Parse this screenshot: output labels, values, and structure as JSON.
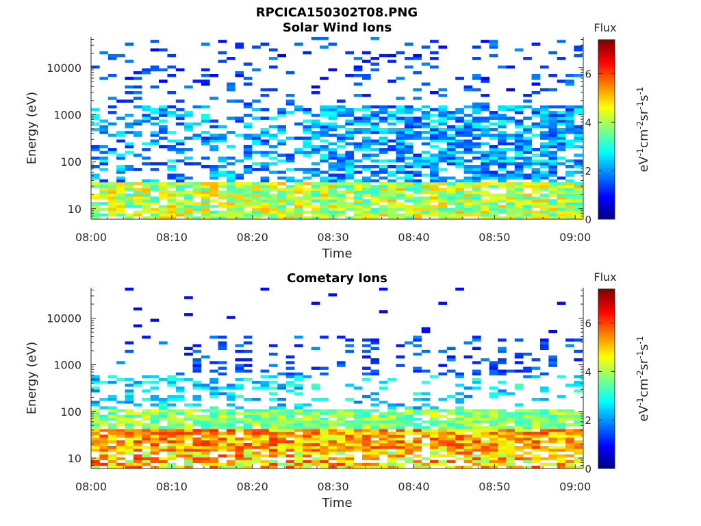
{
  "figure": {
    "filename_title": "RPCICA150302T08.PNG"
  },
  "chart_data": [
    {
      "type": "heatmap",
      "title": "Solar Wind Ions",
      "xlabel": "Time",
      "ylabel": "Energy (eV)",
      "x_tick_labels": [
        "08:00",
        "08:10",
        "08:20",
        "08:30",
        "08:40",
        "08:50",
        "09:00"
      ],
      "xlim_minutes": [
        0,
        61
      ],
      "y_scale": "log",
      "ylim": [
        6,
        45000
      ],
      "y_tick_values": [
        10,
        100,
        1000,
        10000
      ],
      "y_tick_labels": [
        "10",
        "100",
        "1000",
        "10000"
      ],
      "colorbar": {
        "label": "Flux",
        "units_label": "eV-1cm-2sr-1s-1",
        "range": [
          0,
          7.4
        ],
        "tick_values": [
          0,
          2,
          4,
          6
        ],
        "tick_labels": [
          "0",
          "2",
          "4",
          "6"
        ],
        "colormap": "jet"
      },
      "grid": false
    },
    {
      "type": "heatmap",
      "title": "Cometary Ions",
      "xlabel": "Time",
      "ylabel": "Energy (eV)",
      "x_tick_labels": [
        "08:00",
        "08:10",
        "08:20",
        "08:30",
        "08:40",
        "08:50",
        "09:00"
      ],
      "xlim_minutes": [
        0,
        61
      ],
      "y_scale": "log",
      "ylim": [
        6,
        45000
      ],
      "y_tick_values": [
        10,
        100,
        1000,
        10000
      ],
      "y_tick_labels": [
        "10",
        "100",
        "1000",
        "10000"
      ],
      "colorbar": {
        "label": "Flux",
        "units_label": "eV-1cm-2sr-1s-1",
        "range": [
          0,
          7.4
        ],
        "tick_values": [
          0,
          2,
          4,
          6
        ],
        "tick_labels": [
          "0",
          "2",
          "4",
          "6"
        ],
        "colormap": "jet"
      },
      "grid": false
    }
  ]
}
